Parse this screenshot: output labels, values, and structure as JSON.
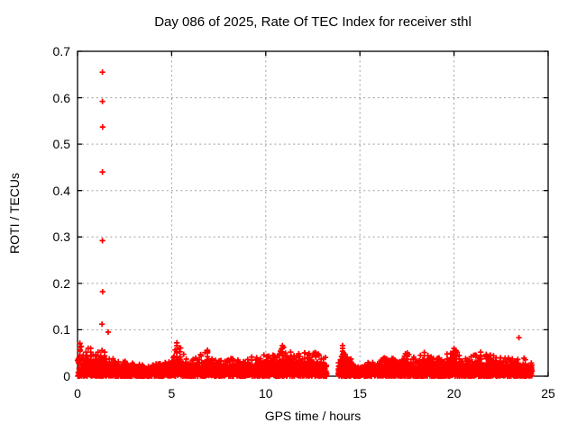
{
  "chart_data": {
    "type": "scatter",
    "title": "Day 086 of 2025, Rate Of TEC Index for receiver sthl",
    "xlabel": "GPS time / hours",
    "ylabel": "ROTI / TECUs",
    "xlim": [
      0,
      25
    ],
    "ylim": [
      0,
      0.7
    ],
    "xticks": [
      {
        "v": 0,
        "label": "0"
      },
      {
        "v": 5,
        "label": "5"
      },
      {
        "v": 10,
        "label": "10"
      },
      {
        "v": 15,
        "label": "15"
      },
      {
        "v": 20,
        "label": "20"
      },
      {
        "v": 25,
        "label": "25"
      }
    ],
    "yticks": [
      {
        "v": 0.0,
        "label": "0"
      },
      {
        "v": 0.1,
        "label": "0.1"
      },
      {
        "v": 0.2,
        "label": "0.2"
      },
      {
        "v": 0.3,
        "label": "0.3"
      },
      {
        "v": 0.4,
        "label": "0.4"
      },
      {
        "v": 0.5,
        "label": "0.5"
      },
      {
        "v": 0.6,
        "label": "0.6"
      },
      {
        "v": 0.7,
        "label": "0.7"
      }
    ],
    "grid": true,
    "grid_color": "#9e9e9e",
    "axis_color": "#000000",
    "marker": "plus",
    "marker_color": "#ff0000",
    "outlier_points": [
      [
        1.32,
        0.655
      ],
      [
        1.32,
        0.592
      ],
      [
        1.33,
        0.537
      ],
      [
        1.32,
        0.44
      ],
      [
        1.32,
        0.292
      ],
      [
        1.33,
        0.182
      ],
      [
        1.3,
        0.112
      ],
      [
        1.63,
        0.095
      ],
      [
        23.45,
        0.083
      ]
    ],
    "spike_columns": [
      {
        "x": 0.12,
        "ys": [
          0.038,
          0.046,
          0.054,
          0.062,
          0.07
        ]
      },
      {
        "x": 0.7,
        "ys": [
          0.036,
          0.044,
          0.052,
          0.06
        ]
      },
      {
        "x": 1.44,
        "ys": [
          0.036,
          0.044,
          0.052
        ]
      },
      {
        "x": 5.28,
        "ys": [
          0.034,
          0.042,
          0.05,
          0.058,
          0.066,
          0.072
        ]
      },
      {
        "x": 6.9,
        "ys": [
          0.034,
          0.042,
          0.05,
          0.056
        ]
      },
      {
        "x": 10.88,
        "ys": [
          0.036,
          0.044,
          0.052,
          0.06,
          0.066
        ]
      },
      {
        "x": 11.32,
        "ys": [
          0.036,
          0.044,
          0.052
        ]
      },
      {
        "x": 14.08,
        "ys": [
          0.026,
          0.033,
          0.04,
          0.047,
          0.054,
          0.06,
          0.066
        ]
      },
      {
        "x": 17.52,
        "ys": [
          0.036,
          0.043,
          0.05
        ]
      },
      {
        "x": 18.42,
        "ys": [
          0.036,
          0.044,
          0.051
        ]
      },
      {
        "x": 20.0,
        "ys": [
          0.038,
          0.046,
          0.053,
          0.06
        ]
      },
      {
        "x": 21.42,
        "ys": [
          0.037,
          0.045,
          0.052
        ]
      }
    ],
    "band": {
      "x_start": 0.0,
      "x_end": 24.15,
      "gaps": [
        [
          13.25,
          13.85
        ]
      ],
      "n_points": 4300,
      "seed": 20250086,
      "core_fraction": 0.8,
      "envelope": [
        [
          0.0,
          0.072
        ],
        [
          0.15,
          0.072
        ],
        [
          0.4,
          0.062
        ],
        [
          0.7,
          0.064
        ],
        [
          1.0,
          0.05
        ],
        [
          1.3,
          0.058
        ],
        [
          1.5,
          0.055
        ],
        [
          1.8,
          0.04
        ],
        [
          2.2,
          0.035
        ],
        [
          2.7,
          0.032
        ],
        [
          3.2,
          0.028
        ],
        [
          3.7,
          0.02
        ],
        [
          4.2,
          0.028
        ],
        [
          4.7,
          0.032
        ],
        [
          5.1,
          0.05
        ],
        [
          5.3,
          0.074
        ],
        [
          5.55,
          0.055
        ],
        [
          5.9,
          0.035
        ],
        [
          6.3,
          0.04
        ],
        [
          6.9,
          0.058
        ],
        [
          7.3,
          0.04
        ],
        [
          7.8,
          0.034
        ],
        [
          8.3,
          0.04
        ],
        [
          8.8,
          0.038
        ],
        [
          9.3,
          0.042
        ],
        [
          9.8,
          0.045
        ],
        [
          10.3,
          0.048
        ],
        [
          10.9,
          0.066
        ],
        [
          11.3,
          0.056
        ],
        [
          11.8,
          0.053
        ],
        [
          12.3,
          0.05
        ],
        [
          12.7,
          0.052
        ],
        [
          13.0,
          0.045
        ],
        [
          13.2,
          0.04
        ],
        [
          13.9,
          0.035
        ],
        [
          14.1,
          0.066
        ],
        [
          14.35,
          0.05
        ],
        [
          14.7,
          0.025
        ],
        [
          15.1,
          0.02
        ],
        [
          15.5,
          0.032
        ],
        [
          16.0,
          0.036
        ],
        [
          16.5,
          0.042
        ],
        [
          17.0,
          0.04
        ],
        [
          17.5,
          0.05
        ],
        [
          18.0,
          0.042
        ],
        [
          18.4,
          0.052
        ],
        [
          18.9,
          0.05
        ],
        [
          19.3,
          0.042
        ],
        [
          19.7,
          0.05
        ],
        [
          20.0,
          0.06
        ],
        [
          20.4,
          0.042
        ],
        [
          20.9,
          0.044
        ],
        [
          21.4,
          0.052
        ],
        [
          21.9,
          0.05
        ],
        [
          22.3,
          0.04
        ],
        [
          22.8,
          0.042
        ],
        [
          23.3,
          0.038
        ],
        [
          23.7,
          0.04
        ],
        [
          24.1,
          0.032
        ]
      ]
    }
  }
}
